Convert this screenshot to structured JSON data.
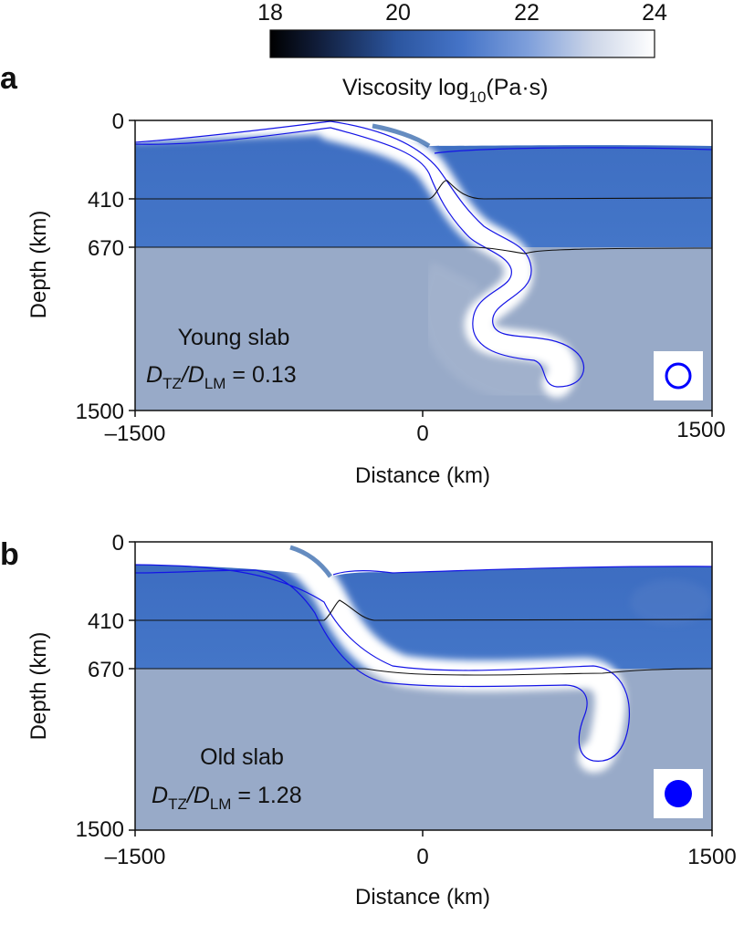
{
  "colorbar": {
    "ticks": [
      "18",
      "20",
      "22",
      "24"
    ],
    "label_main": "Viscosity log",
    "label_sub": "10",
    "label_unit": "(Pa·s)"
  },
  "panels": [
    {
      "letter": "a",
      "slab_label": "Young slab",
      "ratio_prefix_main": "D",
      "ratio_sub_1": "TZ",
      "ratio_mid": "/D",
      "ratio_sub_2": "LM",
      "ratio_value": " = 0.13",
      "marker": "open-circle",
      "y_ticks": [
        "0",
        "410",
        "670",
        "1500"
      ],
      "y_label": "Depth (km)",
      "x_ticks": [
        "–1500",
        "0",
        "1500"
      ],
      "x_label": "Distance (km)"
    },
    {
      "letter": "b",
      "slab_label": "Old slab",
      "ratio_prefix_main": "D",
      "ratio_sub_1": "TZ",
      "ratio_mid": "/D",
      "ratio_sub_2": "LM",
      "ratio_value": " = 1.28",
      "marker": "filled-circle",
      "y_ticks": [
        "0",
        "410",
        "670",
        "1500"
      ],
      "y_label": "Depth (km)",
      "x_ticks": [
        "–1500",
        "0",
        "1500"
      ],
      "x_label": "Distance (km)"
    }
  ],
  "colors": {
    "upper_mantle": "#3f6fc0",
    "lower_mantle": "#98aac8",
    "slab": "#ffffff",
    "contour": "#1414e6",
    "phase_line": "#111111",
    "marker": "#0000ff"
  }
}
